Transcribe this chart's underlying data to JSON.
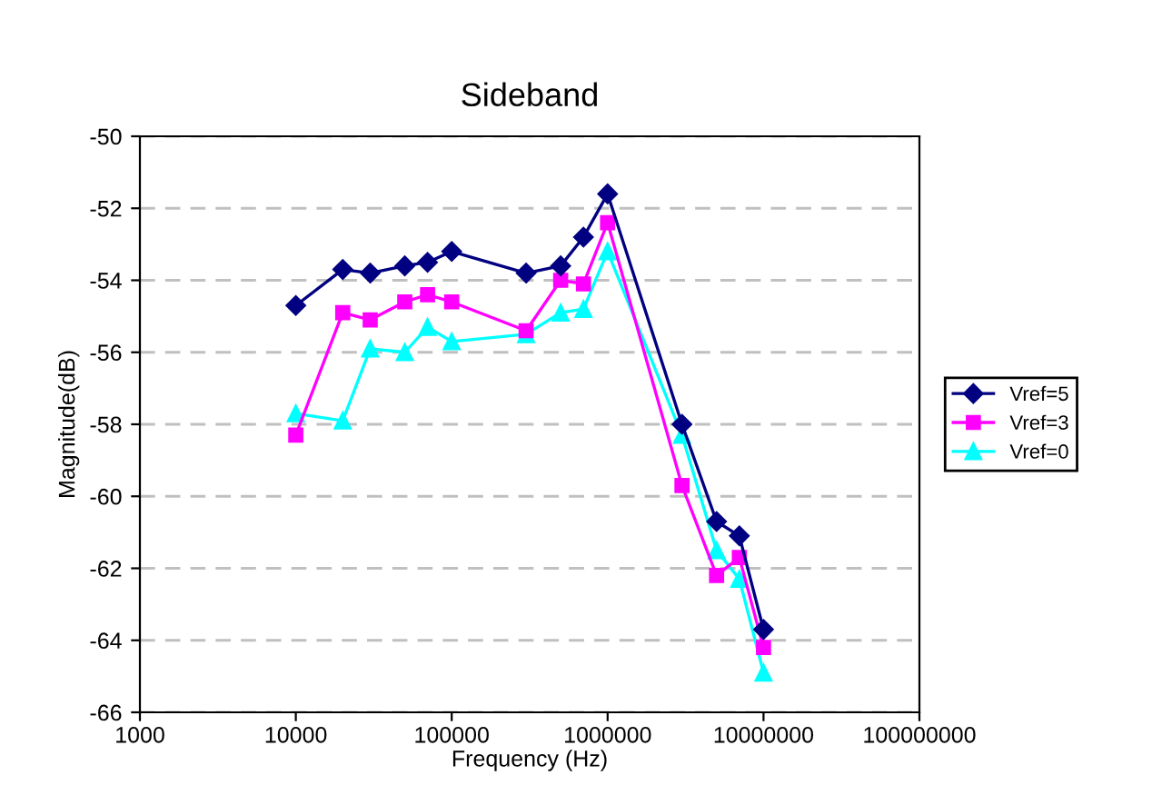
{
  "chart_data": {
    "type": "line",
    "title": "Sideband",
    "xlabel": "Frequency (Hz)",
    "ylabel": "Magnitude(dB)",
    "log": "x",
    "x": [
      10000,
      20000,
      30000,
      50000,
      70000,
      100000,
      300000,
      500000,
      700000,
      1000000,
      3000000,
      5000000,
      7000000,
      10000000
    ],
    "series": [
      {
        "name": "Vref=5",
        "color": "#000080",
        "marker": "diamond",
        "values": [
          -54.7,
          -53.7,
          -53.8,
          -53.6,
          -53.5,
          -53.2,
          -53.8,
          -53.6,
          -52.8,
          -51.6,
          -58.0,
          -60.7,
          -61.1,
          -63.7
        ]
      },
      {
        "name": "Vref=3",
        "color": "#ff00ff",
        "marker": "square",
        "values": [
          -58.3,
          -54.9,
          -55.1,
          -54.6,
          -54.4,
          -54.6,
          -55.4,
          -54.0,
          -54.1,
          -52.4,
          -59.7,
          -62.2,
          -61.7,
          -64.2
        ]
      },
      {
        "name": "Vref=0",
        "color": "#00ffff",
        "marker": "triangle",
        "values": [
          -57.7,
          -57.9,
          -55.9,
          -56.0,
          -55.3,
          -55.7,
          -55.5,
          -54.9,
          -54.8,
          -53.2,
          -58.3,
          -61.5,
          -62.3,
          -64.9
        ]
      }
    ],
    "xlim": [
      1000,
      100000000
    ],
    "xticks": [
      1000,
      10000,
      100000,
      1000000,
      10000000,
      100000000
    ],
    "ylim": [
      -66,
      -50
    ],
    "yticks": [
      -66,
      -64,
      -62,
      -60,
      -58,
      -56,
      -54,
      -52,
      -50
    ],
    "grid": "y",
    "legend": "right"
  }
}
